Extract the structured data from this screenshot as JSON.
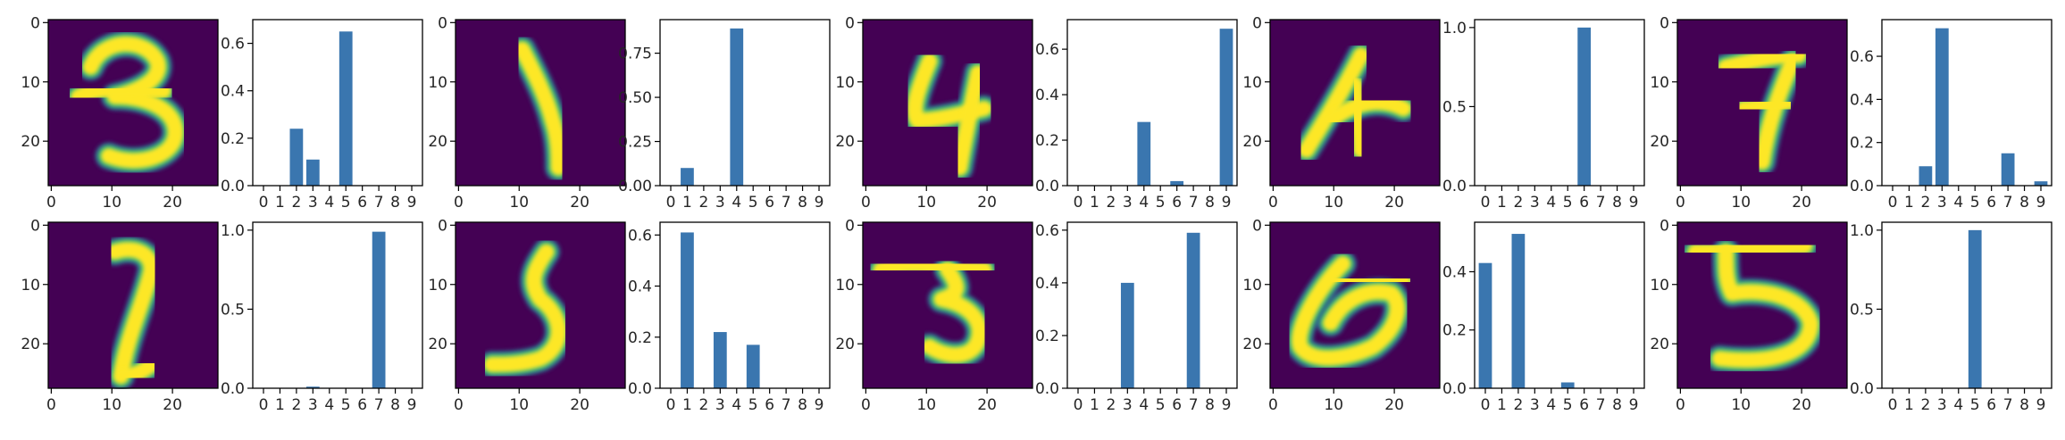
{
  "colors": {
    "bar": "#3a76af",
    "image_background": "#440154",
    "image_low": "#31688e",
    "image_mid": "#35b779",
    "image_stroke": "#fde725"
  },
  "chart_data": [
    {
      "type": "heatmap",
      "digit": "3",
      "xticks": [
        "0",
        "10",
        "20"
      ],
      "yticks": [
        "0",
        "10",
        "20"
      ],
      "xlim": [
        0,
        28
      ],
      "ylim": [
        28,
        0
      ]
    },
    {
      "type": "bar",
      "categories": [
        "0",
        "1",
        "2",
        "3",
        "4",
        "5",
        "6",
        "7",
        "8",
        "9"
      ],
      "values": [
        0,
        0,
        0.24,
        0.11,
        0,
        0.65,
        0,
        0,
        0,
        0
      ],
      "ylim": [
        0,
        0.7
      ],
      "yticks": [
        "0.0",
        "0.2",
        "0.4",
        "0.6"
      ]
    },
    {
      "type": "heatmap",
      "digit": "1",
      "xticks": [
        "0",
        "10",
        "20"
      ],
      "yticks": [
        "0",
        "10",
        "20"
      ],
      "xlim": [
        0,
        28
      ],
      "ylim": [
        28,
        0
      ]
    },
    {
      "type": "bar",
      "categories": [
        "0",
        "1",
        "2",
        "3",
        "4",
        "5",
        "6",
        "7",
        "8",
        "9"
      ],
      "values": [
        0,
        0.1,
        0,
        0,
        0.89,
        0,
        0,
        0,
        0,
        0
      ],
      "ylim": [
        0,
        0.94
      ],
      "yticks": [
        "0.00",
        "0.25",
        "0.50",
        "0.75"
      ]
    },
    {
      "type": "heatmap",
      "digit": "4",
      "xticks": [
        "0",
        "10",
        "20"
      ],
      "yticks": [
        "0",
        "10",
        "20"
      ],
      "xlim": [
        0,
        28
      ],
      "ylim": [
        28,
        0
      ]
    },
    {
      "type": "bar",
      "categories": [
        "0",
        "1",
        "2",
        "3",
        "4",
        "5",
        "6",
        "7",
        "8",
        "9"
      ],
      "values": [
        0,
        0,
        0,
        0,
        0.28,
        0,
        0.02,
        0,
        0,
        0.69
      ],
      "ylim": [
        0,
        0.73
      ],
      "yticks": [
        "0.0",
        "0.2",
        "0.4",
        "0.6"
      ]
    },
    {
      "type": "heatmap",
      "digit": "4",
      "xticks": [
        "0",
        "10",
        "20"
      ],
      "yticks": [
        "0",
        "10",
        "20"
      ],
      "xlim": [
        0,
        28
      ],
      "ylim": [
        28,
        0
      ]
    },
    {
      "type": "bar",
      "categories": [
        "0",
        "1",
        "2",
        "3",
        "4",
        "5",
        "6",
        "7",
        "8",
        "9"
      ],
      "values": [
        0,
        0,
        0,
        0,
        0,
        0,
        1.0,
        0,
        0,
        0
      ],
      "ylim": [
        0,
        1.05
      ],
      "yticks": [
        "0.0",
        "0.5",
        "1.0"
      ]
    },
    {
      "type": "heatmap",
      "digit": "7",
      "xticks": [
        "0",
        "10",
        "20"
      ],
      "yticks": [
        "0",
        "10",
        "20"
      ],
      "xlim": [
        0,
        28
      ],
      "ylim": [
        28,
        0
      ]
    },
    {
      "type": "bar",
      "categories": [
        "0",
        "1",
        "2",
        "3",
        "4",
        "5",
        "6",
        "7",
        "8",
        "9"
      ],
      "values": [
        0,
        0,
        0.09,
        0.73,
        0,
        0,
        0,
        0.15,
        0,
        0.02
      ],
      "ylim": [
        0,
        0.77
      ],
      "yticks": [
        "0.0",
        "0.2",
        "0.4",
        "0.6"
      ]
    },
    {
      "type": "heatmap",
      "digit": "7",
      "xticks": [
        "0",
        "10",
        "20"
      ],
      "yticks": [
        "0",
        "10",
        "20"
      ],
      "xlim": [
        0,
        28
      ],
      "ylim": [
        28,
        0
      ]
    },
    {
      "type": "bar",
      "categories": [
        "0",
        "1",
        "2",
        "3",
        "4",
        "5",
        "6",
        "7",
        "8",
        "9"
      ],
      "values": [
        0,
        0,
        0,
        0.01,
        0,
        0,
        0,
        0.99,
        0,
        0
      ],
      "ylim": [
        0,
        1.05
      ],
      "yticks": [
        "0.0",
        "0.5",
        "1.0"
      ]
    },
    {
      "type": "heatmap",
      "digit": "5",
      "xticks": [
        "0",
        "10",
        "20"
      ],
      "yticks": [
        "0",
        "10",
        "20"
      ],
      "xlim": [
        0,
        28
      ],
      "ylim": [
        28,
        0
      ]
    },
    {
      "type": "bar",
      "categories": [
        "0",
        "1",
        "2",
        "3",
        "4",
        "5",
        "6",
        "7",
        "8",
        "9"
      ],
      "values": [
        0,
        0.61,
        0,
        0.22,
        0,
        0.17,
        0,
        0,
        0,
        0
      ],
      "ylim": [
        0,
        0.65
      ],
      "yticks": [
        "0.0",
        "0.2",
        "0.4",
        "0.6"
      ]
    },
    {
      "type": "heatmap",
      "digit": "3",
      "xticks": [
        "0",
        "10",
        "20"
      ],
      "yticks": [
        "0",
        "10",
        "20"
      ],
      "xlim": [
        0,
        28
      ],
      "ylim": [
        28,
        0
      ]
    },
    {
      "type": "bar",
      "categories": [
        "0",
        "1",
        "2",
        "3",
        "4",
        "5",
        "6",
        "7",
        "8",
        "9"
      ],
      "values": [
        0,
        0,
        0,
        0.4,
        0,
        0,
        0,
        0.59,
        0,
        0
      ],
      "ylim": [
        0,
        0.63
      ],
      "yticks": [
        "0.0",
        "0.2",
        "0.4",
        "0.6"
      ]
    },
    {
      "type": "heatmap",
      "digit": "6",
      "xticks": [
        "0",
        "10",
        "20"
      ],
      "yticks": [
        "0",
        "10",
        "20"
      ],
      "xlim": [
        0,
        28
      ],
      "ylim": [
        28,
        0
      ]
    },
    {
      "type": "bar",
      "categories": [
        "0",
        "1",
        "2",
        "3",
        "4",
        "5",
        "6",
        "7",
        "8",
        "9"
      ],
      "values": [
        0.43,
        0,
        0.53,
        0,
        0,
        0.02,
        0,
        0,
        0,
        0
      ],
      "ylim": [
        0,
        0.57
      ],
      "yticks": [
        "0.0",
        "0.2",
        "0.4"
      ]
    },
    {
      "type": "heatmap",
      "digit": "5",
      "xticks": [
        "0",
        "10",
        "20"
      ],
      "yticks": [
        "0",
        "10",
        "20"
      ],
      "xlim": [
        0,
        28
      ],
      "ylim": [
        28,
        0
      ]
    },
    {
      "type": "bar",
      "categories": [
        "0",
        "1",
        "2",
        "3",
        "4",
        "5",
        "6",
        "7",
        "8",
        "9"
      ],
      "values": [
        0,
        0,
        0,
        0,
        0,
        1.0,
        0,
        0,
        0,
        0
      ],
      "ylim": [
        0,
        1.05
      ],
      "yticks": [
        "0.0",
        "0.5",
        "1.0"
      ]
    }
  ]
}
